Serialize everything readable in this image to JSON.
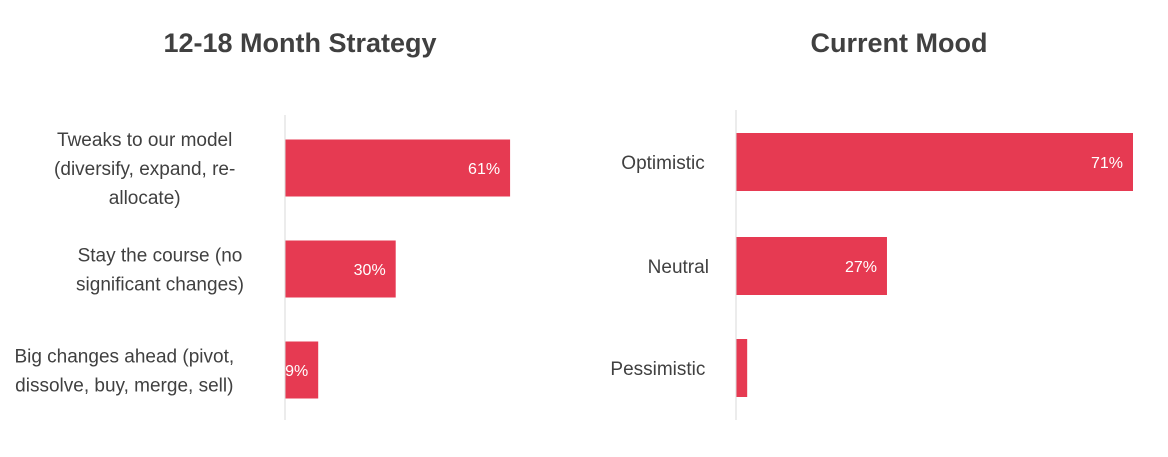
{
  "chart_data": [
    {
      "type": "bar",
      "orientation": "horizontal",
      "title": "12-18 Month Strategy",
      "categories": [
        "Tweaks to our model (diversify, expand, re-allocate)",
        "Stay the course (no significant changes)",
        "Big changes ahead (pivot, dissolve, buy, merge, sell)"
      ],
      "category_lines": [
        [
          "Tweaks to our model",
          "(diversify, expand, re-",
          "allocate)"
        ],
        [
          "Stay the course (no",
          "significant changes)"
        ],
        [
          "Big changes ahead (pivot,",
          "dissolve, buy, merge, sell)"
        ]
      ],
      "values": [
        61,
        30,
        9
      ],
      "value_labels": [
        "61%",
        "30%",
        "9%"
      ],
      "xlim": [
        0,
        100
      ],
      "bar_color": "#e63a52"
    },
    {
      "type": "bar",
      "orientation": "horizontal",
      "title": "Current Mood",
      "categories": [
        "Optimistic",
        "Neutral",
        "Pessimistic"
      ],
      "category_lines": [
        [
          "Optimistic"
        ],
        [
          "Neutral"
        ],
        [
          "Pessimistic"
        ]
      ],
      "values": [
        71,
        27,
        2
      ],
      "value_labels": [
        "71%",
        "27%",
        ""
      ],
      "xlim": [
        0,
        71
      ],
      "bar_color": "#e63a52"
    }
  ]
}
